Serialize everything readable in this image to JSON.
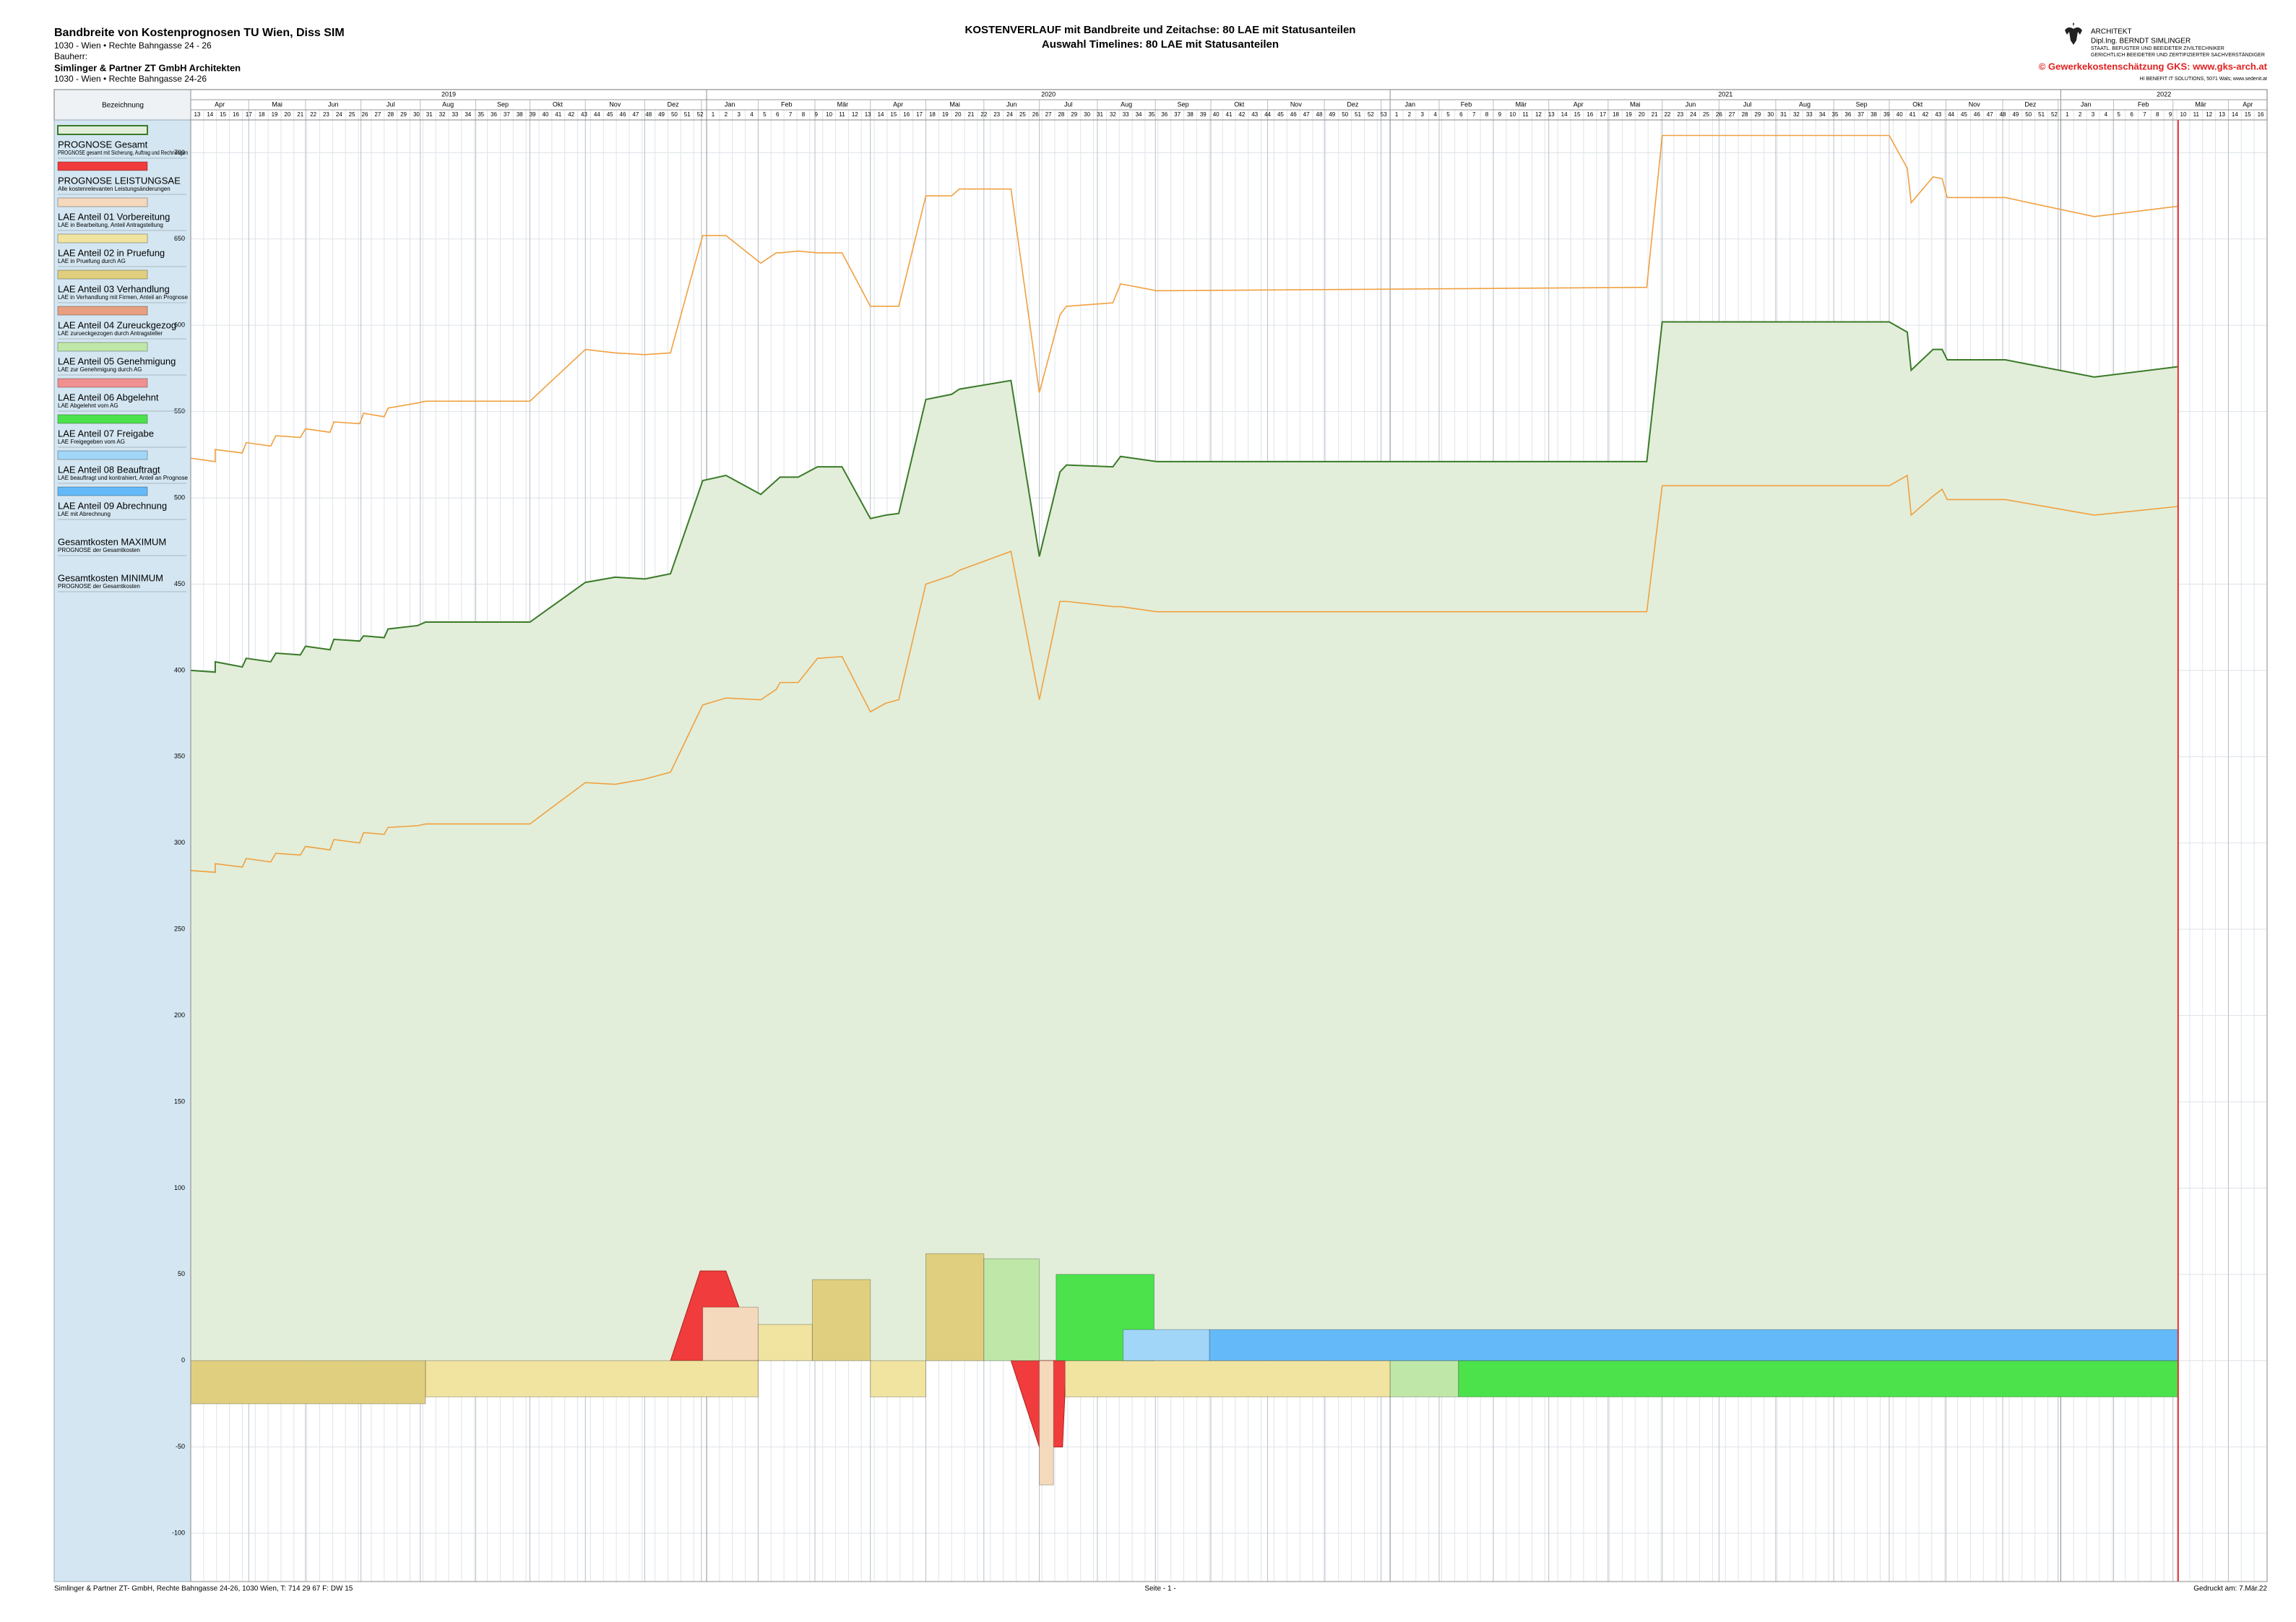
{
  "header": {
    "title": "Bandbreite von Kostenprognosen TU Wien, Diss SIM",
    "address": "1030 - Wien  •  Rechte Bahngasse 24 - 26",
    "client_label": "Bauherr:",
    "client": "Simlinger & Partner ZT GmbH Architekten",
    "client_address": "1030 - Wien  •  Rechte Bahngasse 24-26"
  },
  "office": {
    "role": "ARCHITEKT",
    "name": "Dipl.Ing. BERNDT SIMLINGER",
    "line1": "STAATL. BEFUGTER UND BEEIDETER ZIVILTECHNIKER",
    "line2": "GERICHTLICH BEEIDETER UND ZERTIFIZIERTER SACHVERSTÄNDIGER",
    "copyright": "© Gewerkekostenschätzung GKS: www.gks-arch.at",
    "software": "HI BENEFIT IT SOLUTIONS, 5071 Wals; www.sedenit.at"
  },
  "footer": {
    "company": "Simlinger & Partner ZT- GmbH, Rechte Bahngasse 24-26, 1030 Wien, T: 714 29 67 F: DW 15",
    "page": "Seite - 1 -",
    "printed": "Gedruckt am: 7.Mär.22"
  },
  "chart_data": {
    "type": "area",
    "title": "KOSTENVERLAUF mit Bandbreite und Zeitachse: 80 LAE mit Statusanteilen",
    "subtitle": "Auswahl Timelines: 80 LAE mit Statusanteilen",
    "legend_header": "Bezeichnung",
    "years": [
      {
        "label": "2019",
        "start": 0
      },
      {
        "label": "2020",
        "start": 40
      },
      {
        "label": "2021",
        "start": 93
      },
      {
        "label": "2022",
        "start": 145
      }
    ],
    "months": [
      {
        "label": "Apr",
        "start": 0
      },
      {
        "label": "Mai",
        "start": 4.5
      },
      {
        "label": "Jun",
        "start": 8.9
      },
      {
        "label": "Jul",
        "start": 13.2
      },
      {
        "label": "Aug",
        "start": 17.8
      },
      {
        "label": "Sep",
        "start": 22.1
      },
      {
        "label": "Okt",
        "start": 26.3
      },
      {
        "label": "Nov",
        "start": 30.6
      },
      {
        "label": "Dez",
        "start": 35.2
      },
      {
        "label": "Jan",
        "start": 39.6
      },
      {
        "label": "Feb",
        "start": 44.0
      },
      {
        "label": "Mär",
        "start": 48.4
      },
      {
        "label": "Apr",
        "start": 52.7
      },
      {
        "label": "Mai",
        "start": 57.0
      },
      {
        "label": "Jun",
        "start": 61.5
      },
      {
        "label": "Jul",
        "start": 65.8
      },
      {
        "label": "Aug",
        "start": 70.3
      },
      {
        "label": "Sep",
        "start": 74.8
      },
      {
        "label": "Okt",
        "start": 79.1
      },
      {
        "label": "Nov",
        "start": 83.5
      },
      {
        "label": "Dez",
        "start": 87.9
      },
      {
        "label": "Jan",
        "start": 92.3
      },
      {
        "label": "Feb",
        "start": 96.8
      },
      {
        "label": "Mär",
        "start": 101.0
      },
      {
        "label": "Apr",
        "start": 105.3
      },
      {
        "label": "Mai",
        "start": 109.9
      },
      {
        "label": "Jun",
        "start": 114.1
      },
      {
        "label": "Jul",
        "start": 118.5
      },
      {
        "label": "Aug",
        "start": 122.9
      },
      {
        "label": "Sep",
        "start": 127.4
      },
      {
        "label": "Okt",
        "start": 131.7
      },
      {
        "label": "Nov",
        "start": 136.1
      },
      {
        "label": "Dez",
        "start": 140.5
      },
      {
        "label": "Jan",
        "start": 144.8
      },
      {
        "label": "Feb",
        "start": 149.1
      },
      {
        "label": "Mär",
        "start": 153.7
      },
      {
        "label": "Apr",
        "start": 158.0
      }
    ],
    "weeks": [
      13,
      14,
      15,
      16,
      17,
      18,
      19,
      20,
      21,
      22,
      23,
      24,
      25,
      26,
      27,
      28,
      29,
      30,
      31,
      32,
      33,
      34,
      35,
      36,
      37,
      38,
      39,
      40,
      41,
      42,
      43,
      44,
      45,
      46,
      47,
      48,
      49,
      50,
      51,
      52,
      1,
      2,
      3,
      4,
      5,
      6,
      7,
      8,
      9,
      10,
      11,
      12,
      13,
      14,
      15,
      16,
      17,
      18,
      19,
      20,
      21,
      22,
      23,
      24,
      25,
      26,
      27,
      28,
      29,
      30,
      31,
      32,
      33,
      34,
      35,
      36,
      37,
      38,
      39,
      40,
      41,
      42,
      43,
      44,
      45,
      46,
      47,
      48,
      49,
      50,
      51,
      52,
      53,
      1,
      2,
      3,
      4,
      5,
      6,
      7,
      8,
      9,
      10,
      11,
      12,
      13,
      14,
      15,
      16,
      17,
      18,
      19,
      20,
      21,
      22,
      23,
      24,
      25,
      26,
      27,
      28,
      29,
      30,
      31,
      32,
      33,
      34,
      35,
      36,
      37,
      38,
      39,
      40,
      41,
      42,
      43,
      44,
      45,
      46,
      47,
      48,
      49,
      50,
      51,
      52,
      1,
      2,
      3,
      4,
      5,
      6,
      7,
      8,
      9,
      10,
      11,
      12,
      13,
      14,
      15,
      16
    ],
    "xlim": [
      0,
      161
    ],
    "ylim": [
      -128,
      719
    ],
    "yticks": [
      -100,
      -50,
      0,
      50,
      100,
      150,
      200,
      250,
      300,
      350,
      400,
      450,
      500,
      550,
      600,
      650,
      700
    ],
    "grid": true,
    "today_x": 154.1,
    "today_color": "#e03030",
    "x": [
      0,
      1.9,
      1.9,
      4.0,
      4.3,
      6.2,
      6.6,
      8.5,
      8.9,
      10.8,
      11.1,
      13.1,
      13.4,
      15.0,
      15.3,
      17.6,
      18.2,
      26.3,
      30.6,
      32.9,
      35.2,
      37.2,
      39.7,
      41.5,
      44.2,
      45.4,
      45.7,
      47.1,
      48.6,
      50.5,
      52.7,
      53.9,
      54.9,
      57.0,
      59.0,
      59.6,
      63.6,
      65.8,
      67.4,
      67.9,
      71.5,
      72.1,
      74.9,
      112.9,
      114.1,
      131.7,
      133.1,
      133.4,
      135.1,
      135.8,
      136.2,
      140.7,
      147.6,
      154.1
    ],
    "series": [
      {
        "name": "PROGNOSE Gesamt",
        "description": "PROGNOSE gesamt mit Sicherung, Auftrag und Rechnungen",
        "color": "#3a7a28",
        "fill": "#e2eed9",
        "values": [
          400,
          399,
          405,
          402,
          407,
          405,
          410,
          409,
          414,
          412,
          418,
          417,
          420,
          419,
          424,
          426,
          428,
          428,
          451,
          454,
          453,
          456,
          510,
          513,
          502,
          510,
          512,
          512,
          518,
          518,
          488,
          490,
          491,
          557,
          560,
          563,
          568,
          466,
          515,
          519,
          518,
          524,
          521,
          521,
          602,
          602,
          596,
          574,
          586,
          586,
          580,
          580,
          570,
          576
        ]
      },
      {
        "name": "PROGNOSE LEISTUNGSAE",
        "description": "Alle kostenrelevanten Leistungsänderungen",
        "color": "#f03c3c",
        "areas": [
          {
            "x": [
              37.2,
              39.5,
              41.5,
              44.0
            ],
            "values": [
              0,
              52,
              52,
              0
            ]
          },
          {
            "x": [
              63.6,
              65.8,
              67.6,
              67.9
            ],
            "values": [
              0,
              -50,
              -50,
              0
            ]
          }
        ]
      },
      {
        "name": "LAE Anteil 01 Vorbereitung",
        "description": "LAE in Bearbeitung, Anteil Antragstellung",
        "color": "#f5d9bc",
        "blocks": [
          {
            "start": 39.7,
            "end": 44.0,
            "value": 31
          },
          {
            "start": 65.8,
            "end": 66.9,
            "value": -72
          }
        ]
      },
      {
        "name": "LAE Anteil 02 in Pruefung",
        "description": "LAE in Pruefung durch AG",
        "color": "#f0e4a0",
        "blocks": [
          {
            "start": 44.0,
            "end": 48.2,
            "value": 21
          },
          {
            "start": 18.2,
            "end": 44.0,
            "value": -21
          },
          {
            "start": 52.7,
            "end": 57.0,
            "value": -21
          },
          {
            "start": 67.8,
            "end": 93.0,
            "value": -21
          }
        ]
      },
      {
        "name": "LAE Anteil 03 Verhandlung",
        "description": "LAE in Verhandlung mit Firmen, Anteil an Prognose",
        "color": "#e0cf7e",
        "blocks": [
          {
            "start": 48.2,
            "end": 52.7,
            "value": 47
          },
          {
            "start": 57.0,
            "end": 61.5,
            "value": 62
          },
          {
            "start": 0,
            "end": 18.2,
            "value": -25
          }
        ]
      },
      {
        "name": "LAE Anteil 04 Zureuckgezog",
        "description": "LAE zurueckgezogen durch Antragsteller",
        "color": "#e8a080",
        "blocks": []
      },
      {
        "name": "LAE Anteil 05 Genehmigung",
        "description": "LAE zur Genehmigung durch AG",
        "color": "#bfe8a8",
        "blocks": [
          {
            "start": 61.5,
            "end": 65.8,
            "value": 59
          },
          {
            "start": 93.0,
            "end": 98.3,
            "value": -21
          }
        ]
      },
      {
        "name": "LAE Anteil 06 Abgelehnt",
        "description": "LAE Abgelehnt vom AG",
        "color": "#f09090",
        "blocks": []
      },
      {
        "name": "LAE Anteil 07 Freigabe",
        "description": "LAE Freigegeben vom AG",
        "color": "#4ce24c",
        "blocks": [
          {
            "start": 67.1,
            "end": 74.7,
            "value": 50
          },
          {
            "start": 98.3,
            "end": 154.1,
            "value": -21
          }
        ]
      },
      {
        "name": "LAE Anteil 08 Beauftragt",
        "description": "LAE beauftragt und kontrahiert, Anteil an Prognose",
        "color": "#a2d6f8",
        "blocks": [
          {
            "start": 72.3,
            "end": 79.0,
            "value": 18
          }
        ]
      },
      {
        "name": "LAE Anteil 09 Abrechnung",
        "description": "LAE mit Abrechnung",
        "color": "#64baf8",
        "blocks": [
          {
            "start": 79.0,
            "end": 154.1,
            "value": 18
          }
        ]
      },
      {
        "name": "Gesamtkosten MAXIMUM",
        "description": "PROGNOSE der Gesamtkosten",
        "color": "#f0a040",
        "values": [
          523,
          521,
          528,
          526,
          532,
          530,
          536,
          535,
          540,
          538,
          544,
          543,
          549,
          547,
          552,
          555,
          556,
          556,
          586,
          584,
          583,
          584,
          652,
          652,
          636,
          642,
          642,
          643,
          642,
          642,
          611,
          611,
          611,
          675,
          675,
          679,
          679,
          561,
          606,
          611,
          613,
          624,
          620,
          622,
          710,
          710,
          691,
          671,
          686,
          685,
          674,
          674,
          663,
          669
        ]
      },
      {
        "name": "Gesamtkosten MINIMUM",
        "description": "PROGNOSE der Gesamtkosten",
        "color": "#f0a040",
        "values": [
          284,
          283,
          288,
          286,
          291,
          289,
          294,
          293,
          298,
          296,
          302,
          300,
          306,
          305,
          309,
          310,
          311,
          311,
          335,
          334,
          337,
          341,
          380,
          384,
          383,
          389,
          393,
          393,
          407,
          408,
          376,
          381,
          383,
          450,
          455,
          458,
          469,
          383,
          440,
          440,
          437,
          437,
          434,
          434,
          507,
          507,
          513,
          490,
          501,
          505,
          499,
          499,
          490,
          495
        ]
      }
    ]
  }
}
